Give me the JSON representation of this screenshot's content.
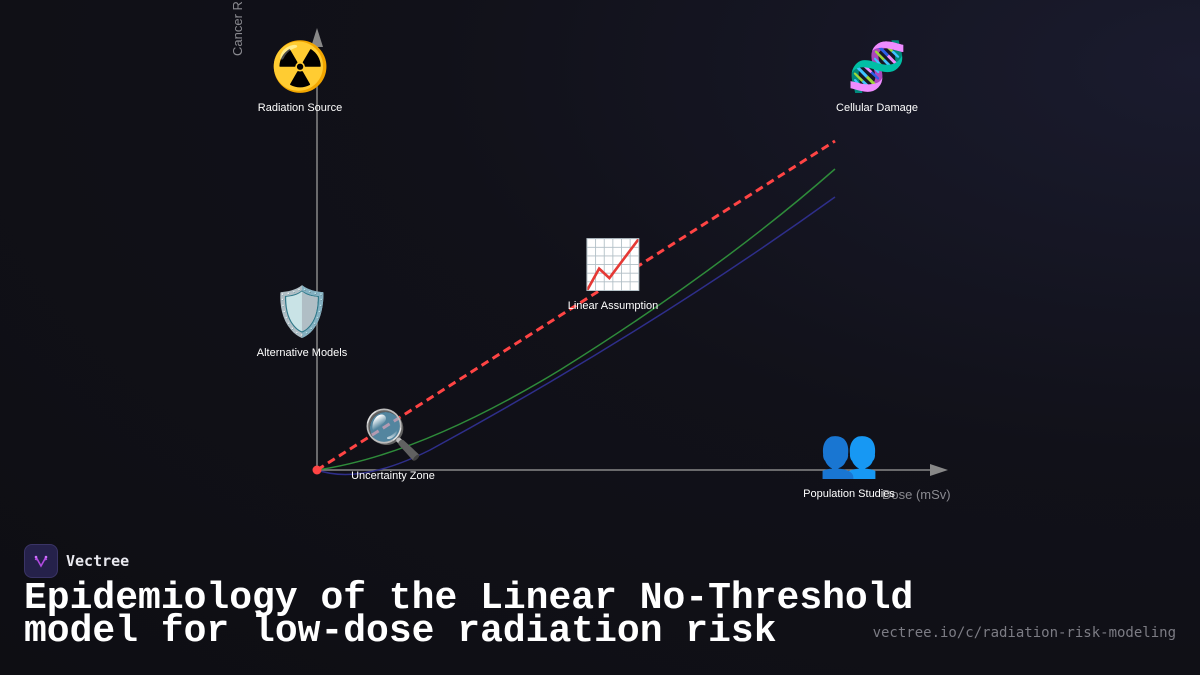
{
  "diagram": {
    "y_axis_label": "Cancer R",
    "x_axis_label": "Dose (mSv)",
    "colors": {
      "linear": "#ff4444",
      "green_curve": "#2e8b3a",
      "blue_curve": "#2e2e8a",
      "axis": "#888888"
    },
    "nodes": [
      {
        "id": "radiation-source",
        "icon": "radioactive-icon",
        "emoji": "☢️",
        "label": "Radiation Source"
      },
      {
        "id": "cellular-damage",
        "icon": "dna-icon",
        "emoji": "🧬",
        "label": "Cellular Damage"
      },
      {
        "id": "linear-assumption",
        "icon": "chart-increasing-icon",
        "emoji": "📈",
        "label": "Linear Assumption"
      },
      {
        "id": "alternative-models",
        "icon": "shield-icon",
        "emoji": "🛡️",
        "label": "Alternative Models"
      },
      {
        "id": "uncertainty-zone",
        "icon": "magnifier-icon",
        "emoji": "🔍",
        "label": "Uncertainty Zone"
      },
      {
        "id": "population-studies",
        "icon": "people-icon",
        "emoji": "👥",
        "label": "Population Studies"
      }
    ]
  },
  "footer": {
    "brand": "Vectree",
    "title_line1": "Epidemiology of the Linear No-Threshold",
    "title_line2": "model for low-dose radiation risk",
    "url": "vectree.io/c/radiation-risk-modeling"
  }
}
